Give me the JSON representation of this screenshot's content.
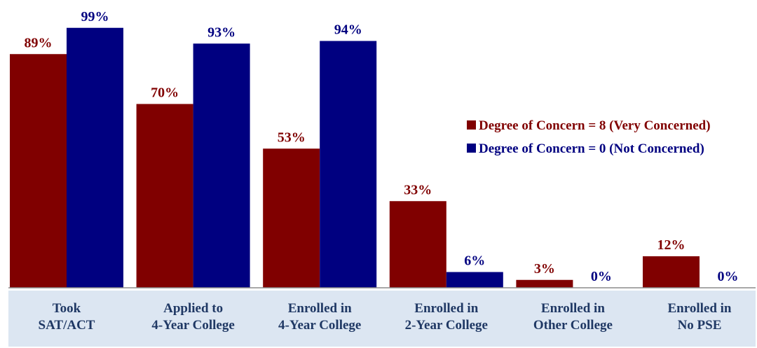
{
  "chart_data": {
    "type": "bar",
    "categories": [
      [
        "Took",
        "SAT/ACT"
      ],
      [
        "Applied to",
        "4-Year College"
      ],
      [
        "Enrolled in",
        "4-Year College"
      ],
      [
        "Enrolled in",
        "2-Year College"
      ],
      [
        "Enrolled in",
        "Other College"
      ],
      [
        "Enrolled in",
        "No PSE"
      ]
    ],
    "series": [
      {
        "name": "Degree of Concern = 8 (Very Concerned)",
        "values": [
          89,
          70,
          53,
          33,
          3,
          12
        ],
        "labels": [
          "89%",
          "70%",
          "53%",
          "33%",
          "3%",
          "12%"
        ],
        "color": "#800000"
      },
      {
        "name": "Degree of Concern = 0 (Not Concerned)",
        "values": [
          99,
          93,
          94,
          6,
          0,
          0
        ],
        "labels": [
          "99%",
          "93%",
          "94%",
          "6%",
          "0%",
          "0%"
        ],
        "color": "#000080"
      }
    ],
    "ylim": [
      0,
      100
    ],
    "grid": false,
    "legend_position": "right",
    "title": "",
    "xlabel": "",
    "ylabel": "",
    "category_band_color": "#dce6f2"
  }
}
